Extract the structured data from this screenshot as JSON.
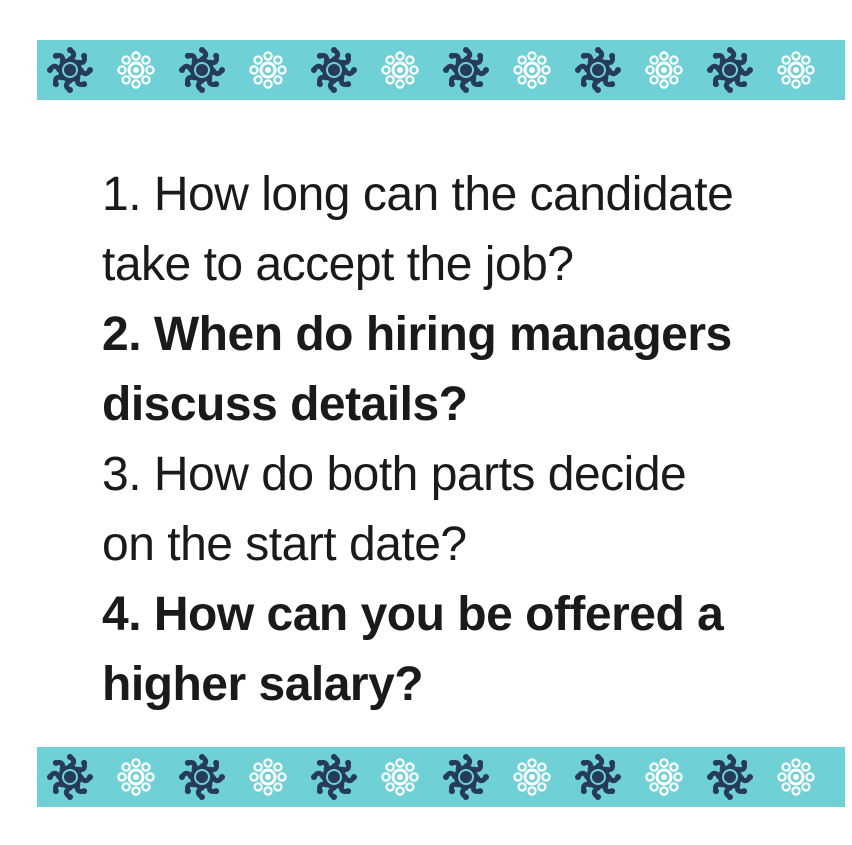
{
  "decoration": {
    "band_color": "#6fd0d6",
    "dark_sun_color": "#263a5c",
    "light_sun_color": "#ffffff",
    "sun_pattern": [
      "dark-sun-icon",
      "light-sun-icon",
      "dark-sun-icon",
      "light-sun-icon",
      "dark-sun-icon",
      "light-sun-icon",
      "dark-sun-icon",
      "light-sun-icon",
      "dark-sun-icon",
      "light-sun-icon",
      "dark-sun-icon",
      "light-sun-icon"
    ]
  },
  "questions": [
    {
      "number": "1.",
      "lines": [
        "1. How long can the candidate",
        "take to accept the job?"
      ],
      "style": "regular"
    },
    {
      "number": "2.",
      "lines": [
        "2. When do hiring managers",
        "discuss details?"
      ],
      "style": "bold"
    },
    {
      "number": "3.",
      "lines": [
        "3. How do both parts decide",
        "on the start date?"
      ],
      "style": "regular"
    },
    {
      "number": "4.",
      "lines": [
        "4. How can you be offered a",
        "higher salary?"
      ],
      "style": "bold"
    }
  ]
}
